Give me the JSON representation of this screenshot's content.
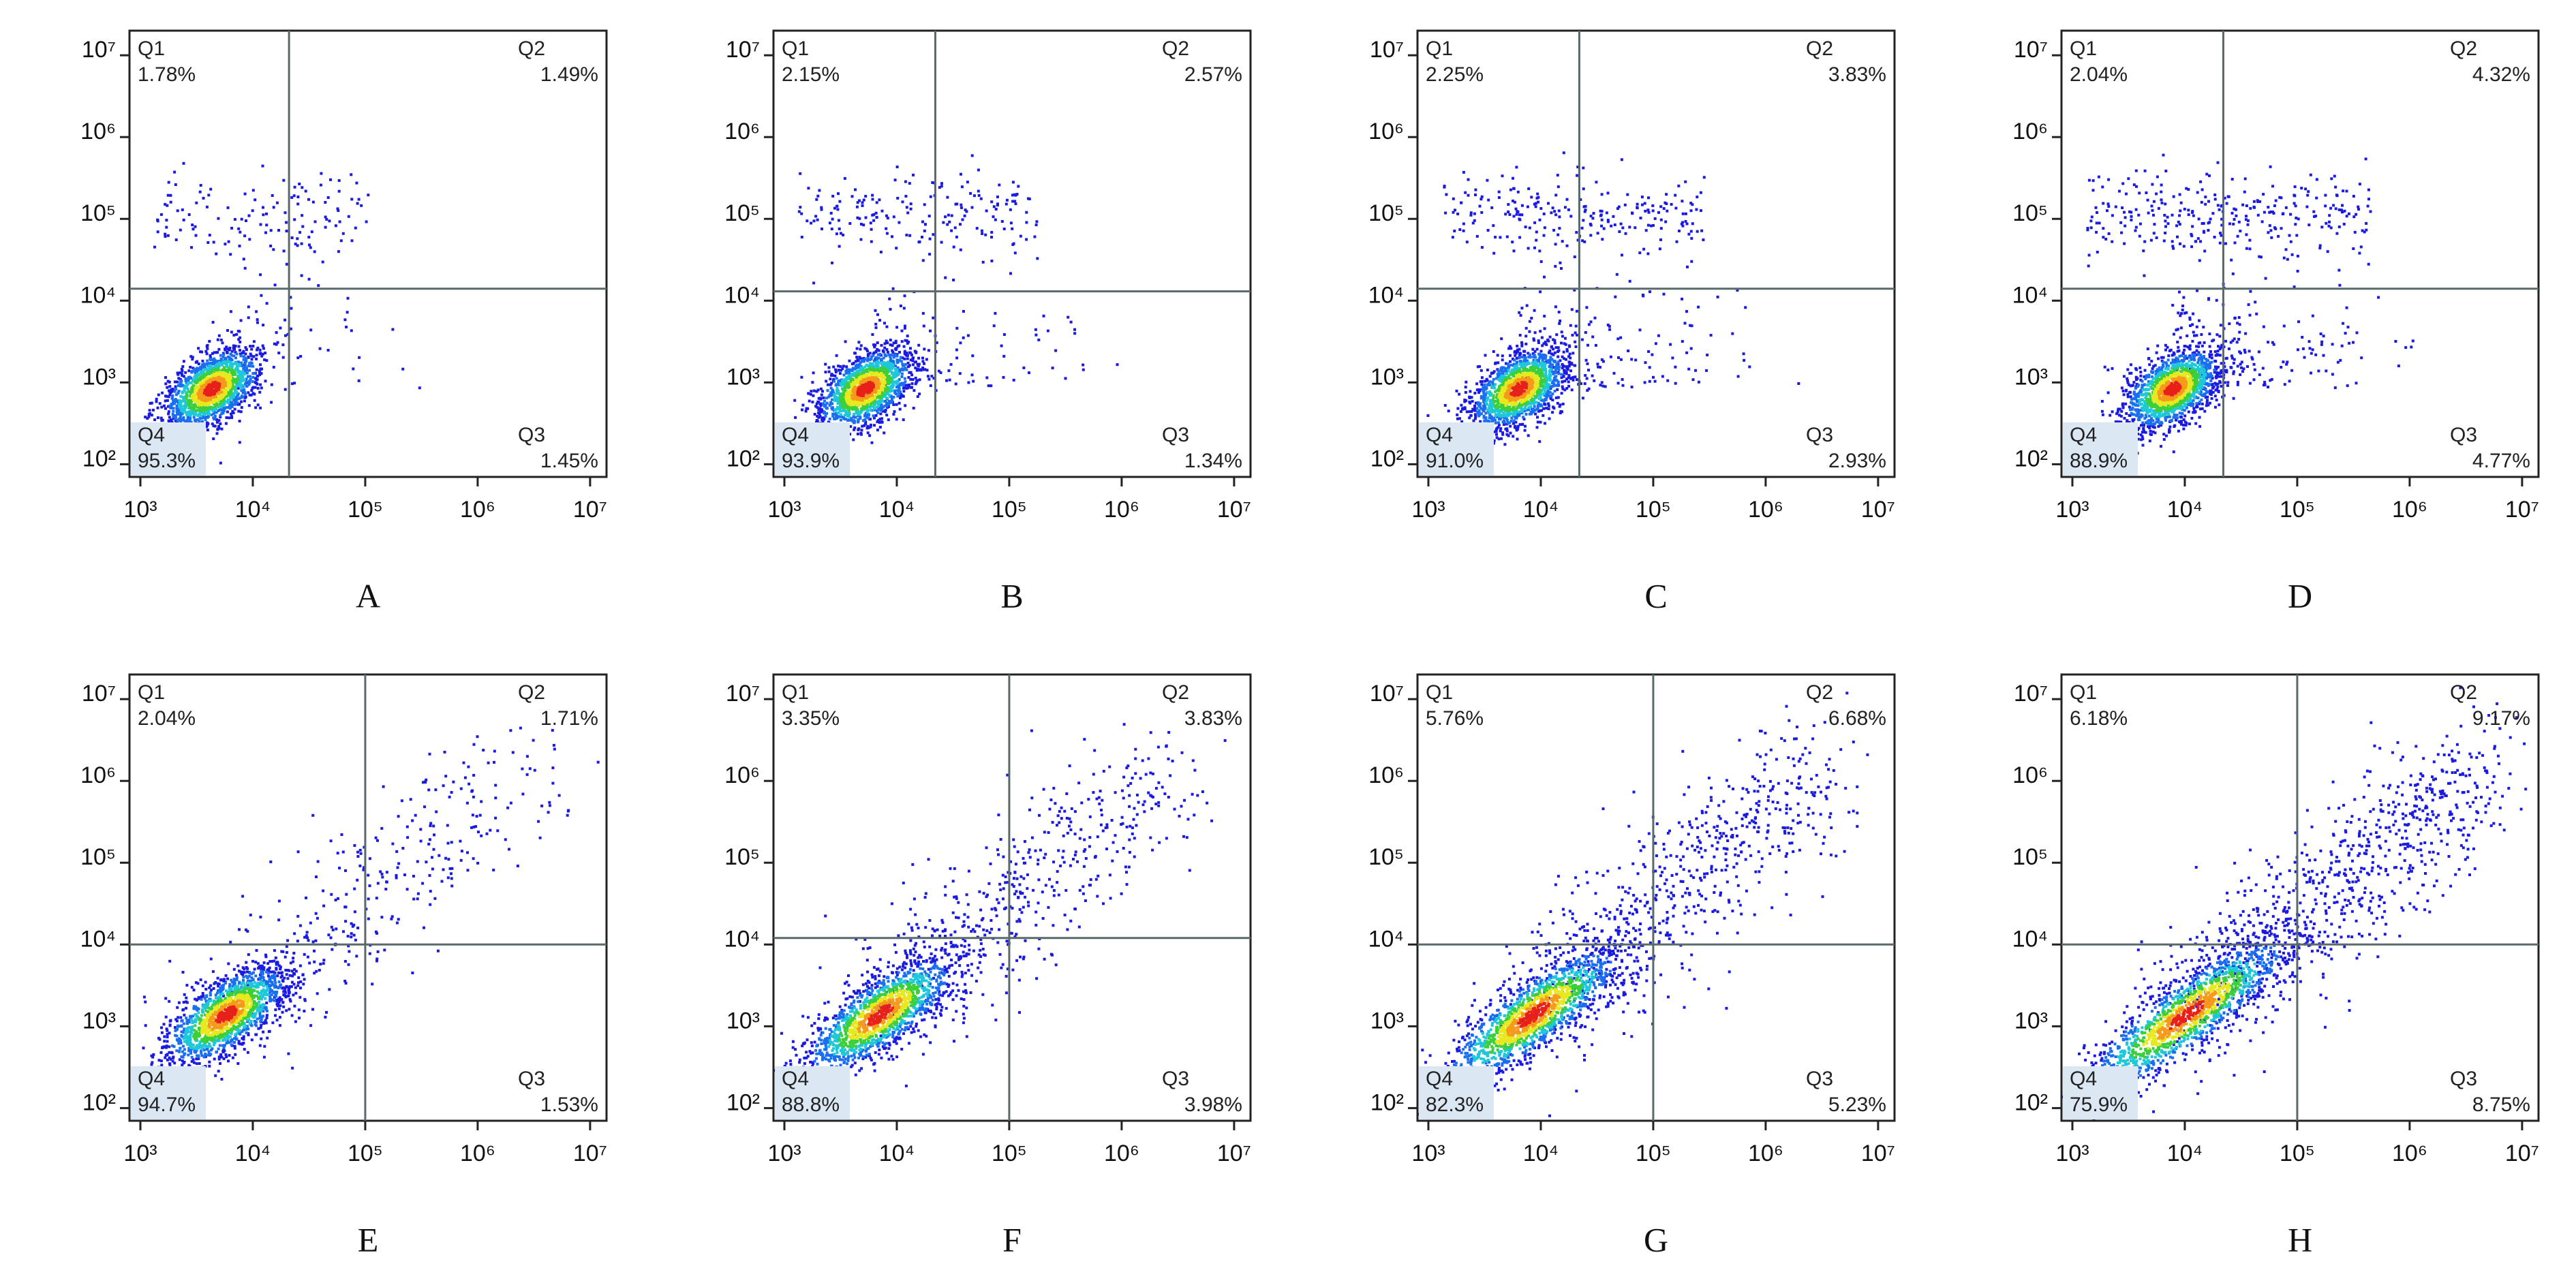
{
  "chart_data": [
    {
      "type": "scatter",
      "title": "A",
      "xscale": "log",
      "yscale": "log",
      "xlim": [
        800,
        14000000
      ],
      "ylim": [
        70,
        20000000
      ],
      "xticks": [
        {
          "value": 1000,
          "label": "10³"
        },
        {
          "value": 10000,
          "label": "10⁴"
        },
        {
          "value": 100000,
          "label": "10⁵"
        },
        {
          "value": 1000000,
          "label": "10⁶"
        },
        {
          "value": 10000000,
          "label": "10⁷"
        }
      ],
      "yticks": [
        {
          "value": 100,
          "label": "10²"
        },
        {
          "value": 1000,
          "label": "10³"
        },
        {
          "value": 10000,
          "label": "10⁴"
        },
        {
          "value": 100000,
          "label": "10⁵"
        },
        {
          "value": 1000000,
          "label": "10⁶"
        },
        {
          "value": 10000000,
          "label": "10⁷"
        }
      ],
      "x_gate": 21000,
      "y_gate": 14000,
      "quadrants": {
        "names": [
          "Q1",
          "Q2",
          "Q3",
          "Q4"
        ],
        "values": [
          1.78,
          1.49,
          1.45,
          95.3
        ],
        "value_labels": [
          "1.78%",
          "1.49%",
          "1.45%",
          "95.3%"
        ]
      }
    },
    {
      "type": "scatter",
      "title": "B",
      "xscale": "log",
      "yscale": "log",
      "xlim": [
        800,
        14000000
      ],
      "ylim": [
        70,
        20000000
      ],
      "xticks": [
        {
          "value": 1000,
          "label": "10³"
        },
        {
          "value": 10000,
          "label": "10⁴"
        },
        {
          "value": 100000,
          "label": "10⁵"
        },
        {
          "value": 1000000,
          "label": "10⁶"
        },
        {
          "value": 10000000,
          "label": "10⁷"
        }
      ],
      "yticks": [
        {
          "value": 100,
          "label": "10²"
        },
        {
          "value": 1000,
          "label": "10³"
        },
        {
          "value": 10000,
          "label": "10⁴"
        },
        {
          "value": 100000,
          "label": "10⁵"
        },
        {
          "value": 1000000,
          "label": "10⁶"
        },
        {
          "value": 10000000,
          "label": "10⁷"
        }
      ],
      "x_gate": 22000,
      "y_gate": 13000,
      "quadrants": {
        "names": [
          "Q1",
          "Q2",
          "Q3",
          "Q4"
        ],
        "values": [
          2.15,
          2.57,
          1.34,
          93.9
        ],
        "value_labels": [
          "2.15%",
          "2.57%",
          "1.34%",
          "93.9%"
        ]
      }
    },
    {
      "type": "scatter",
      "title": "C",
      "xscale": "log",
      "yscale": "log",
      "xlim": [
        800,
        14000000
      ],
      "ylim": [
        70,
        20000000
      ],
      "xticks": [
        {
          "value": 1000,
          "label": "10³"
        },
        {
          "value": 10000,
          "label": "10⁴"
        },
        {
          "value": 100000,
          "label": "10⁵"
        },
        {
          "value": 1000000,
          "label": "10⁶"
        },
        {
          "value": 10000000,
          "label": "10⁷"
        }
      ],
      "yticks": [
        {
          "value": 100,
          "label": "10²"
        },
        {
          "value": 1000,
          "label": "10³"
        },
        {
          "value": 10000,
          "label": "10⁴"
        },
        {
          "value": 100000,
          "label": "10⁵"
        },
        {
          "value": 1000000,
          "label": "10⁶"
        },
        {
          "value": 10000000,
          "label": "10⁷"
        }
      ],
      "x_gate": 22000,
      "y_gate": 14000,
      "quadrants": {
        "names": [
          "Q1",
          "Q2",
          "Q3",
          "Q4"
        ],
        "values": [
          2.25,
          3.83,
          2.93,
          91.0
        ],
        "value_labels": [
          "2.25%",
          "3.83%",
          "2.93%",
          "91.0%"
        ]
      }
    },
    {
      "type": "scatter",
      "title": "D",
      "xscale": "log",
      "yscale": "log",
      "xlim": [
        800,
        14000000
      ],
      "ylim": [
        70,
        20000000
      ],
      "xticks": [
        {
          "value": 1000,
          "label": "10³"
        },
        {
          "value": 10000,
          "label": "10⁴"
        },
        {
          "value": 100000,
          "label": "10⁵"
        },
        {
          "value": 1000000,
          "label": "10⁶"
        },
        {
          "value": 10000000,
          "label": "10⁷"
        }
      ],
      "yticks": [
        {
          "value": 100,
          "label": "10²"
        },
        {
          "value": 1000,
          "label": "10³"
        },
        {
          "value": 10000,
          "label": "10⁴"
        },
        {
          "value": 100000,
          "label": "10⁵"
        },
        {
          "value": 1000000,
          "label": "10⁶"
        },
        {
          "value": 10000000,
          "label": "10⁷"
        }
      ],
      "x_gate": 22000,
      "y_gate": 14000,
      "quadrants": {
        "names": [
          "Q1",
          "Q2",
          "Q3",
          "Q4"
        ],
        "values": [
          2.04,
          4.32,
          4.77,
          88.9
        ],
        "value_labels": [
          "2.04%",
          "4.32%",
          "4.77%",
          "88.9%"
        ]
      }
    },
    {
      "type": "scatter",
      "title": "E",
      "xscale": "log",
      "yscale": "log",
      "xlim": [
        800,
        14000000
      ],
      "ylim": [
        70,
        20000000
      ],
      "xticks": [
        {
          "value": 1000,
          "label": "10³"
        },
        {
          "value": 10000,
          "label": "10⁴"
        },
        {
          "value": 100000,
          "label": "10⁵"
        },
        {
          "value": 1000000,
          "label": "10⁶"
        },
        {
          "value": 10000000,
          "label": "10⁷"
        }
      ],
      "yticks": [
        {
          "value": 100,
          "label": "10²"
        },
        {
          "value": 1000,
          "label": "10³"
        },
        {
          "value": 10000,
          "label": "10⁴"
        },
        {
          "value": 100000,
          "label": "10⁵"
        },
        {
          "value": 1000000,
          "label": "10⁶"
        },
        {
          "value": 10000000,
          "label": "10⁷"
        }
      ],
      "x_gate": 100000,
      "y_gate": 10000,
      "quadrants": {
        "names": [
          "Q1",
          "Q2",
          "Q3",
          "Q4"
        ],
        "values": [
          2.04,
          1.71,
          1.53,
          94.7
        ],
        "value_labels": [
          "2.04%",
          "1.71%",
          "1.53%",
          "94.7%"
        ]
      }
    },
    {
      "type": "scatter",
      "title": "F",
      "xscale": "log",
      "yscale": "log",
      "xlim": [
        800,
        14000000
      ],
      "ylim": [
        70,
        20000000
      ],
      "xticks": [
        {
          "value": 1000,
          "label": "10³"
        },
        {
          "value": 10000,
          "label": "10⁴"
        },
        {
          "value": 100000,
          "label": "10⁵"
        },
        {
          "value": 1000000,
          "label": "10⁶"
        },
        {
          "value": 10000000,
          "label": "10⁷"
        }
      ],
      "yticks": [
        {
          "value": 100,
          "label": "10²"
        },
        {
          "value": 1000,
          "label": "10³"
        },
        {
          "value": 10000,
          "label": "10⁴"
        },
        {
          "value": 100000,
          "label": "10⁵"
        },
        {
          "value": 1000000,
          "label": "10⁶"
        },
        {
          "value": 10000000,
          "label": "10⁷"
        }
      ],
      "x_gate": 100000,
      "y_gate": 12000,
      "quadrants": {
        "names": [
          "Q1",
          "Q2",
          "Q3",
          "Q4"
        ],
        "values": [
          3.35,
          3.83,
          3.98,
          88.8
        ],
        "value_labels": [
          "3.35%",
          "3.83%",
          "3.98%",
          "88.8%"
        ]
      }
    },
    {
      "type": "scatter",
      "title": "G",
      "xscale": "log",
      "yscale": "log",
      "xlim": [
        800,
        14000000
      ],
      "ylim": [
        70,
        20000000
      ],
      "xticks": [
        {
          "value": 1000,
          "label": "10³"
        },
        {
          "value": 10000,
          "label": "10⁴"
        },
        {
          "value": 100000,
          "label": "10⁵"
        },
        {
          "value": 1000000,
          "label": "10⁶"
        },
        {
          "value": 10000000,
          "label": "10⁷"
        }
      ],
      "yticks": [
        {
          "value": 100,
          "label": "10²"
        },
        {
          "value": 1000,
          "label": "10³"
        },
        {
          "value": 10000,
          "label": "10⁴"
        },
        {
          "value": 100000,
          "label": "10⁵"
        },
        {
          "value": 1000000,
          "label": "10⁶"
        },
        {
          "value": 10000000,
          "label": "10⁷"
        }
      ],
      "x_gate": 100000,
      "y_gate": 10000,
      "quadrants": {
        "names": [
          "Q1",
          "Q2",
          "Q3",
          "Q4"
        ],
        "values": [
          5.76,
          6.68,
          5.23,
          82.3
        ],
        "value_labels": [
          "5.76%",
          "6.68%",
          "5.23%",
          "82.3%"
        ]
      }
    },
    {
      "type": "scatter",
      "title": "H",
      "xscale": "log",
      "yscale": "log",
      "xlim": [
        800,
        14000000
      ],
      "ylim": [
        70,
        20000000
      ],
      "xticks": [
        {
          "value": 1000,
          "label": "10³"
        },
        {
          "value": 10000,
          "label": "10⁴"
        },
        {
          "value": 100000,
          "label": "10⁵"
        },
        {
          "value": 1000000,
          "label": "10⁶"
        },
        {
          "value": 10000000,
          "label": "10⁷"
        }
      ],
      "yticks": [
        {
          "value": 100,
          "label": "10²"
        },
        {
          "value": 1000,
          "label": "10³"
        },
        {
          "value": 10000,
          "label": "10⁴"
        },
        {
          "value": 100000,
          "label": "10⁵"
        },
        {
          "value": 1000000,
          "label": "10⁶"
        },
        {
          "value": 10000000,
          "label": "10⁷"
        }
      ],
      "x_gate": 100000,
      "y_gate": 10000,
      "quadrants": {
        "names": [
          "Q1",
          "Q2",
          "Q3",
          "Q4"
        ],
        "values": [
          6.18,
          9.17,
          8.75,
          75.9
        ],
        "value_labels": [
          "6.18%",
          "9.17%",
          "8.75%",
          "75.9%"
        ]
      }
    }
  ]
}
